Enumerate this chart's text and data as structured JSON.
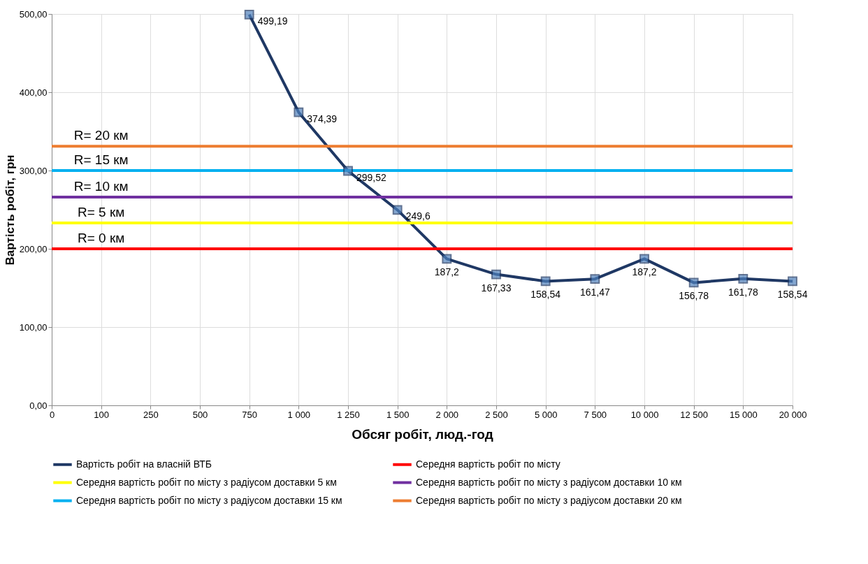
{
  "chart_data": {
    "type": "line",
    "xlabel": "Обсяг робіт, люд.-год",
    "ylabel": "Вартість робіт, грн",
    "categories": [
      "0",
      "100",
      "250",
      "500",
      "750",
      "1 000",
      "1 250",
      "1 500",
      "2 000",
      "2 500",
      "5 000",
      "7 500",
      "10 000",
      "12 500",
      "15 000",
      "20 000"
    ],
    "ylim": [
      0,
      500
    ],
    "yticks": [
      {
        "value": 0,
        "label": "0,00"
      },
      {
        "value": 100,
        "label": "100,00"
      },
      {
        "value": 200,
        "label": "200,00"
      },
      {
        "value": 300,
        "label": "300,00"
      },
      {
        "value": 400,
        "label": "400,00"
      },
      {
        "value": 500,
        "label": "500,00"
      }
    ],
    "grid": true,
    "legend": "bottom",
    "series": [
      {
        "name": "Вартість робіт на власній ВТБ",
        "color": "#1f3864",
        "marker": "square",
        "values": [
          null,
          null,
          null,
          null,
          499.19,
          374.39,
          299.52,
          249.6,
          187.2,
          167.33,
          158.54,
          161.47,
          187.2,
          156.78,
          161.78,
          158.54
        ],
        "value_labels": [
          null,
          null,
          null,
          null,
          "499,19",
          "374,39",
          "299,52",
          "249,6",
          "187,2",
          "167,33",
          "158,54",
          "161,47",
          "187,2",
          "156,78",
          "161,78",
          "158,54"
        ]
      },
      {
        "name": "Середня вартість робіт по місту",
        "color": "#ff0000",
        "values": [
          200,
          200,
          200,
          200,
          200,
          200,
          200,
          200,
          200,
          200,
          200,
          200,
          200,
          200,
          200,
          200
        ]
      },
      {
        "name": "Середня вартість робіт по місту з радіусом доставки 5  км",
        "color": "#ffff00",
        "values": [
          233,
          233,
          233,
          233,
          233,
          233,
          233,
          233,
          233,
          233,
          233,
          233,
          233,
          233,
          233,
          233
        ]
      },
      {
        "name": "Середня вартість робіт по місту з радіусом доставки 10  км",
        "color": "#7030a0",
        "values": [
          266,
          266,
          266,
          266,
          266,
          266,
          266,
          266,
          266,
          266,
          266,
          266,
          266,
          266,
          266,
          266
        ]
      },
      {
        "name": "Середня вартість робіт по місту з радіусом доставки 15  км",
        "color": "#00b0f0",
        "values": [
          300,
          300,
          300,
          300,
          300,
          300,
          300,
          300,
          300,
          300,
          300,
          300,
          300,
          300,
          300,
          300
        ]
      },
      {
        "name": "Середня вартість робіт по місту з радіусом доставки 20  км",
        "color": "#ed7d31",
        "values": [
          331,
          331,
          331,
          331,
          331,
          331,
          331,
          331,
          331,
          331,
          331,
          331,
          331,
          331,
          331,
          331
        ]
      }
    ],
    "annotations": [
      {
        "text": "R= 0 км",
        "x": "100",
        "y": 200
      },
      {
        "text": "R= 5 км",
        "x": "100",
        "y": 233
      },
      {
        "text": "R= 10 км",
        "x": "100",
        "y": 266
      },
      {
        "text": "R= 15 км",
        "x": "100",
        "y": 300
      },
      {
        "text": "R= 20 км",
        "x": "100",
        "y": 331
      }
    ]
  }
}
